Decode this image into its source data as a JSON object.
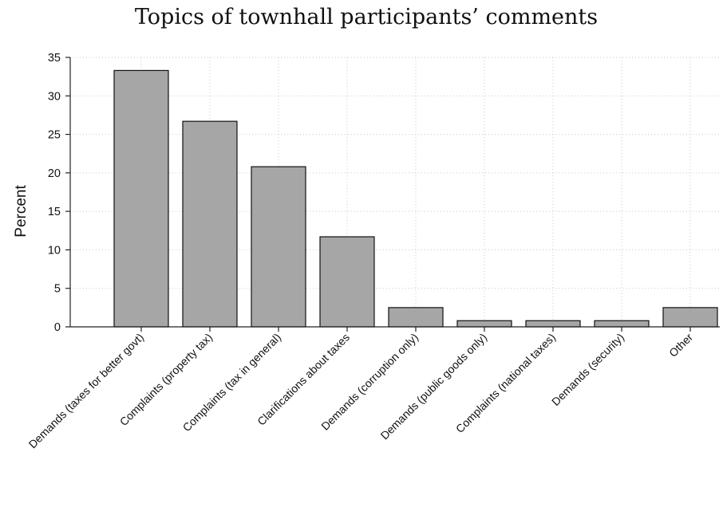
{
  "chart_data": {
    "type": "bar",
    "title": "Topics of townhall participants’ comments",
    "ylabel": "Percent",
    "xlabel": "",
    "ylim": [
      0,
      35
    ],
    "yticks": [
      0,
      5,
      10,
      15,
      20,
      25,
      30,
      35
    ],
    "grid": true,
    "bar_color": "#a6a6a6",
    "categories": [
      "Demands (taxes for better govt)",
      "Complaints (property tax)",
      "Complaints (tax in general)",
      "Clarifications about taxes",
      "Demands (corruption only)",
      "Demands (public goods only)",
      "Complaints (national taxes)",
      "Demands (security)",
      "Other"
    ],
    "values": [
      33.3,
      26.7,
      20.8,
      11.7,
      2.5,
      0.8,
      0.8,
      0.8,
      2.5
    ]
  }
}
